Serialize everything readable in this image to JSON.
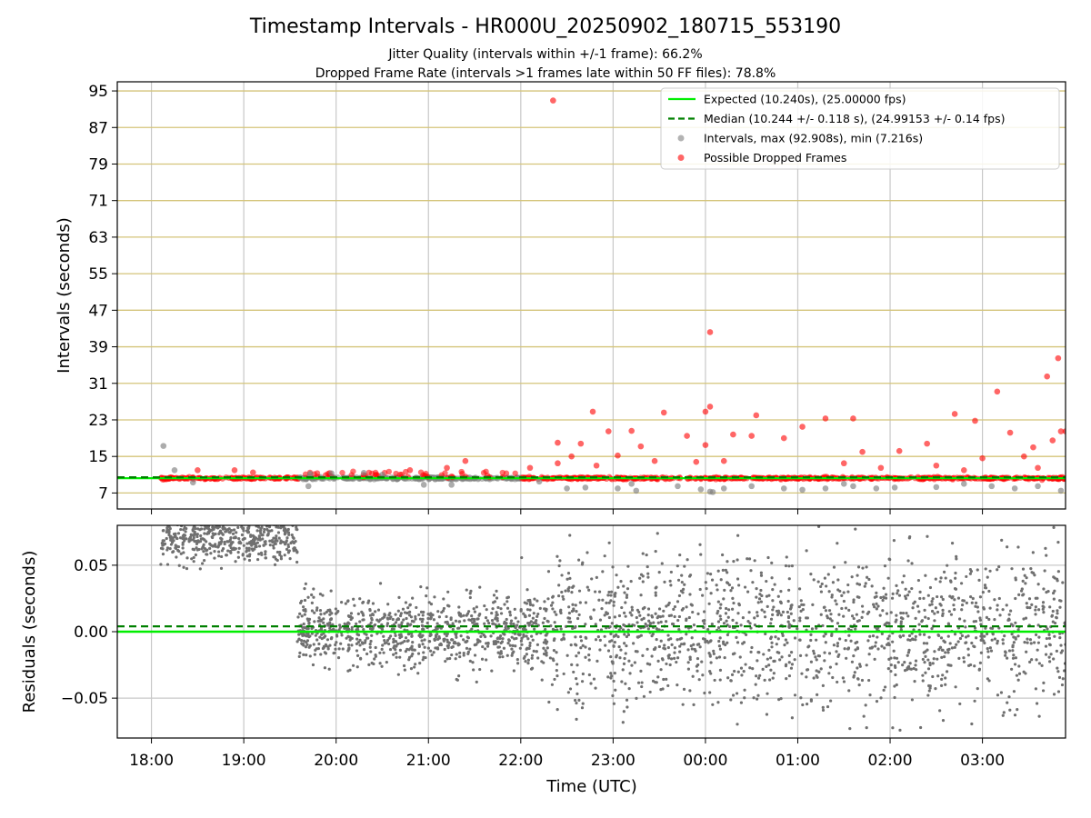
{
  "title": "Timestamp Intervals - HR000U_20250902_180715_553190",
  "subtitle_1": "Jitter Quality (intervals within +/-1 frame): 66.2%",
  "subtitle_2": "Dropped Frame Rate (intervals >1 frames late within 50 FF files): 78.8%",
  "chart_data": [
    {
      "type": "scatter",
      "panel": "intervals",
      "ylabel": "Intervals (seconds)",
      "xlabel": "",
      "x_ticks": [
        "18:00",
        "19:00",
        "20:00",
        "21:00",
        "22:00",
        "23:00",
        "00:00",
        "01:00",
        "02:00",
        "03:00"
      ],
      "x_range_hours_utc": [
        17.63,
        27.9
      ],
      "y_ticks": [
        7,
        15,
        23,
        31,
        39,
        47,
        55,
        63,
        71,
        79,
        87,
        95
      ],
      "ylim": [
        3.5,
        97
      ],
      "grid": "on",
      "legend_position": "top-right",
      "expected_interval": 10.24,
      "median_interval": 10.244,
      "legend": [
        {
          "label": "Expected (10.240s), (25.00000 fps)",
          "style": "solid-line",
          "color": "#00ee00"
        },
        {
          "label": "Median (10.244 +/- 0.118 s), (24.99153 +/- 0.14 fps)",
          "style": "dashed-line",
          "color": "#008000"
        },
        {
          "label": "Intervals, max (92.908s), min (7.216s)",
          "style": "marker",
          "color": "#808080"
        },
        {
          "label": "Possible Dropped Frames",
          "style": "marker",
          "color": "#ff0000"
        }
      ],
      "series": [
        {
          "name": "Possible Dropped Frames",
          "color": "#ff0000",
          "points": [
            [
              22.35,
              92.9
            ],
            [
              24.05,
              42.2
            ],
            [
              27.82,
              36.5
            ],
            [
              27.7,
              32.5
            ],
            [
              27.16,
              29.2
            ],
            [
              24.05,
              25.9
            ],
            [
              24.0,
              24.8
            ],
            [
              22.78,
              24.8
            ],
            [
              23.55,
              24.6
            ],
            [
              26.7,
              24.3
            ],
            [
              24.55,
              24.0
            ],
            [
              25.3,
              23.3
            ],
            [
              25.6,
              23.3
            ],
            [
              26.92,
              22.8
            ],
            [
              27.9,
              20.5
            ],
            [
              27.85,
              20.5
            ],
            [
              22.95,
              20.5
            ],
            [
              23.2,
              20.6
            ],
            [
              24.3,
              19.8
            ],
            [
              25.05,
              21.5
            ],
            [
              24.0,
              17.5
            ],
            [
              24.5,
              19.5
            ],
            [
              22.65,
              17.8
            ],
            [
              27.3,
              20.2
            ],
            [
              23.3,
              17.2
            ],
            [
              23.8,
              19.5
            ],
            [
              24.85,
              19.0
            ],
            [
              27.76,
              18.5
            ],
            [
              27.55,
              17.0
            ],
            [
              26.4,
              17.8
            ],
            [
              25.7,
              16.0
            ],
            [
              26.1,
              16.2
            ],
            [
              22.55,
              15.0
            ],
            [
              23.05,
              15.2
            ],
            [
              22.4,
              18.0
            ],
            [
              22.4,
              13.5
            ],
            [
              23.45,
              14.0
            ],
            [
              24.2,
              14.0
            ],
            [
              25.5,
              13.5
            ],
            [
              26.5,
              13.0
            ],
            [
              27.0,
              14.6
            ],
            [
              27.45,
              15.0
            ],
            [
              27.95,
              14.0
            ],
            [
              22.1,
              12.5
            ],
            [
              21.4,
              14.0
            ],
            [
              20.8,
              12.0
            ],
            [
              18.5,
              12.0
            ],
            [
              18.9,
              12.0
            ],
            [
              19.1,
              11.5
            ],
            [
              21.2,
              12.5
            ],
            [
              22.82,
              13.0
            ],
            [
              23.9,
              13.8
            ],
            [
              25.9,
              12.5
            ],
            [
              26.8,
              12.0
            ],
            [
              27.6,
              12.5
            ]
          ]
        },
        {
          "name": "Intervals",
          "color": "#808080",
          "points": [
            [
              18.13,
              17.3
            ],
            [
              18.25,
              12.0
            ],
            [
              18.45,
              9.3
            ],
            [
              19.7,
              8.5
            ],
            [
              19.72,
              11.2
            ],
            [
              19.95,
              11.3
            ],
            [
              20.3,
              11.4
            ],
            [
              20.5,
              11.0
            ],
            [
              20.95,
              8.8
            ],
            [
              21.25,
              8.8
            ],
            [
              22.2,
              9.5
            ],
            [
              22.5,
              8.0
            ],
            [
              22.7,
              8.2
            ],
            [
              23.05,
              8.0
            ],
            [
              23.25,
              7.5
            ],
            [
              23.7,
              8.5
            ],
            [
              23.95,
              7.8
            ],
            [
              24.05,
              7.3
            ],
            [
              24.2,
              8.0
            ],
            [
              24.5,
              8.5
            ],
            [
              24.85,
              8.0
            ],
            [
              25.05,
              7.7
            ],
            [
              25.3,
              8.0
            ],
            [
              25.6,
              8.5
            ],
            [
              25.85,
              8.0
            ],
            [
              26.05,
              8.2
            ],
            [
              26.5,
              8.3
            ],
            [
              26.8,
              9.0
            ],
            [
              27.1,
              8.5
            ],
            [
              27.35,
              8.0
            ],
            [
              27.6,
              8.5
            ],
            [
              27.85,
              7.5
            ],
            [
              24.08,
              7.2
            ],
            [
              23.2,
              9.0
            ],
            [
              25.5,
              9.0
            ]
          ]
        }
      ]
    },
    {
      "type": "scatter",
      "panel": "residuals",
      "ylabel": "Residuals (seconds)",
      "xlabel": "Time (UTC)",
      "x_ticks": [
        "18:00",
        "19:00",
        "20:00",
        "21:00",
        "22:00",
        "23:00",
        "00:00",
        "01:00",
        "02:00",
        "03:00"
      ],
      "x_range_hours_utc": [
        17.63,
        27.9
      ],
      "y_ticks": [
        "−0.05",
        "0.00",
        "0.05"
      ],
      "y_tick_values": [
        -0.05,
        0.0,
        0.05
      ],
      "ylim": [
        -0.08,
        0.08
      ],
      "grid": "on",
      "expected_residual": 0.0,
      "median_residual": 0.004,
      "series": [
        {
          "segment": "18:08-19:35",
          "center": 0.071,
          "spread": 0.01,
          "color": "#808080"
        },
        {
          "segment": "19:35-22:20",
          "center": 0.0,
          "spread": 0.012,
          "color": "#808080"
        },
        {
          "segment": "22:20-03:55",
          "center": 0.002,
          "spread": 0.028,
          "color": "#808080"
        }
      ]
    }
  ]
}
